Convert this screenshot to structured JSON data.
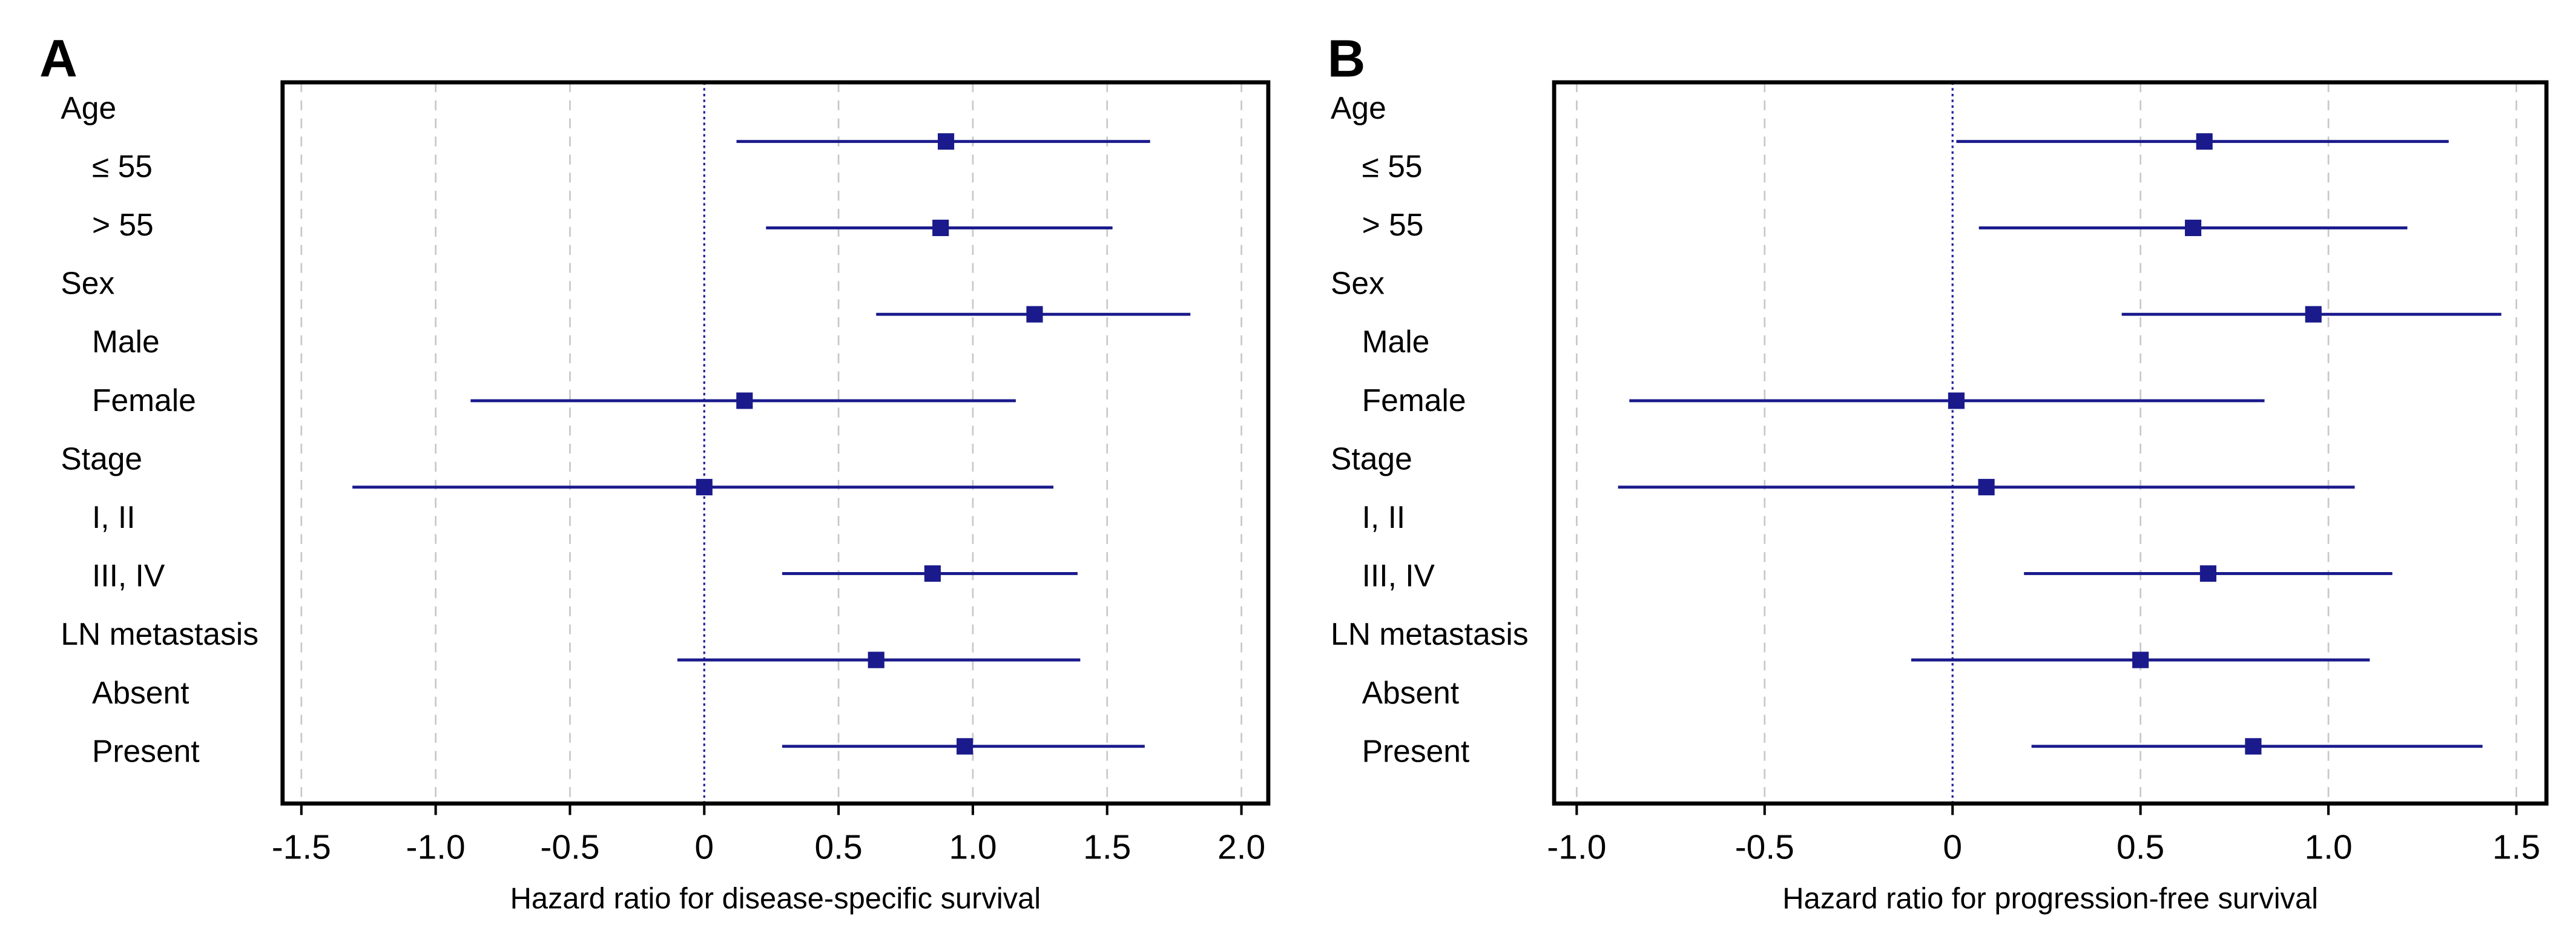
{
  "chart_data": [
    {
      "type": "forest",
      "panel": "A",
      "xlabel": "Hazard ratio for disease-specific survival",
      "color": "#1a1a8c",
      "xlim": [
        -1.57,
        2.1
      ],
      "reference": 0,
      "grid": true,
      "xticks": [
        -1.5,
        {
          "value": -1,
          "label": "-1.0"
        },
        -0.5,
        0,
        0.5,
        {
          "value": 1,
          "label": "1.0"
        },
        1.5,
        {
          "value": 2,
          "label": "2.0"
        }
      ],
      "groups": [
        {
          "name": "Age",
          "levels": [
            "≤ 55",
            "> 55"
          ],
          "estimates": [
            0.9,
            0.88
          ],
          "lower": [
            0.12,
            0.23
          ],
          "upper": [
            1.66,
            1.52
          ]
        },
        {
          "name": "Sex",
          "levels": [
            "Male",
            "Female"
          ],
          "estimates": [
            1.23,
            0.15
          ],
          "lower": [
            0.64,
            -0.87
          ],
          "upper": [
            1.81,
            1.16
          ]
        },
        {
          "name": "Stage",
          "levels": [
            "I, II",
            "III, IV"
          ],
          "estimates": [
            0.0,
            0.85
          ],
          "lower": [
            -1.31,
            0.29
          ],
          "upper": [
            1.3,
            1.39
          ]
        },
        {
          "name": "LN metastasis",
          "levels": [
            "Absent",
            "Present"
          ],
          "estimates": [
            0.64,
            0.97
          ],
          "lower": [
            -0.1,
            0.29
          ],
          "upper": [
            1.4,
            1.64
          ]
        }
      ]
    },
    {
      "type": "forest",
      "panel": "B",
      "xlabel": "Hazard ratio for progression-free survival",
      "color": "#1a1a8c",
      "xlim": [
        -1.06,
        1.58
      ],
      "reference": 0,
      "grid": true,
      "xticks": [
        {
          "value": -1,
          "label": "-1.0"
        },
        -0.5,
        0,
        0.5,
        {
          "value": 1,
          "label": "1.0"
        },
        1.5
      ],
      "groups": [
        {
          "name": "Age",
          "levels": [
            "≤ 55",
            "> 55"
          ],
          "estimates": [
            0.67,
            0.64
          ],
          "lower": [
            0.01,
            0.07
          ],
          "upper": [
            1.32,
            1.21
          ]
        },
        {
          "name": "Sex",
          "levels": [
            "Male",
            "Female"
          ],
          "estimates": [
            0.96,
            0.01
          ],
          "lower": [
            0.45,
            -0.86
          ],
          "upper": [
            1.46,
            0.83
          ]
        },
        {
          "name": "Stage",
          "levels": [
            "I, II",
            "III, IV"
          ],
          "estimates": [
            0.09,
            0.68
          ],
          "lower": [
            -0.89,
            0.19
          ],
          "upper": [
            1.07,
            1.17
          ]
        },
        {
          "name": "LN metastasis",
          "levels": [
            "Absent",
            "Present"
          ],
          "estimates": [
            0.5,
            0.8
          ],
          "lower": [
            -0.11,
            0.21
          ],
          "upper": [
            1.11,
            1.41
          ]
        }
      ]
    }
  ]
}
